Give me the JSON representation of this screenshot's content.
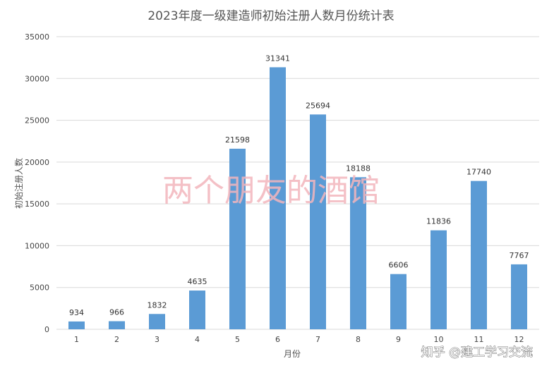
{
  "chart_data": {
    "type": "bar",
    "title": "2023年度一级建造师初始注册人数月份统计表",
    "xlabel": "月份",
    "ylabel": "初始注册人数",
    "categories": [
      "1",
      "2",
      "3",
      "4",
      "5",
      "6",
      "7",
      "8",
      "9",
      "10",
      "11",
      "12"
    ],
    "values": [
      934,
      966,
      1832,
      4635,
      21598,
      31341,
      25694,
      18188,
      6606,
      11836,
      17740,
      7767
    ],
    "ylim": [
      0,
      35000
    ],
    "yticks": [
      0,
      5000,
      10000,
      15000,
      20000,
      25000,
      30000,
      35000
    ],
    "grid": true,
    "legend": "none",
    "bar_color": "#5b9bd5",
    "grid_color": "#d9d9d9"
  },
  "watermark": "两个朋友的酒馆",
  "credit": "知乎 @建工学习交流"
}
